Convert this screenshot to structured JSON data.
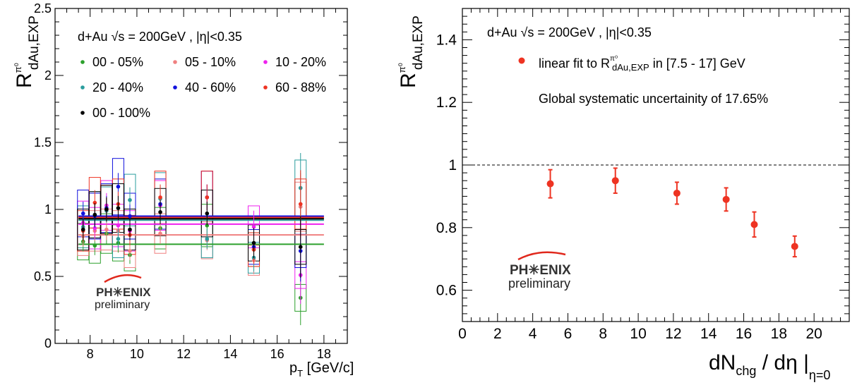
{
  "chart_data": [
    {
      "type": "scatter",
      "title": "",
      "ylabel": {
        "base": "R",
        "sup": "π⁰",
        "sub": "dAu,EXP"
      },
      "xlabel": {
        "base": "p",
        "sub": "T",
        "rest": " [GeV/c]"
      },
      "xlim": [
        6.5,
        19
      ],
      "ylim": [
        0,
        2.5
      ],
      "x_ticks": [
        "8",
        "10",
        "12",
        "14",
        "16",
        "18"
      ],
      "x_tick_values": [
        8,
        10,
        12,
        14,
        16,
        18
      ],
      "y_ticks": [
        "0",
        "0.5",
        "1",
        "1.5",
        "2",
        "2.5"
      ],
      "y_tick_values": [
        0,
        0.5,
        1,
        1.5,
        2,
        2.5
      ],
      "system_label": "d+Au  √s = 200GeV , |η|<0.35",
      "logo": {
        "text": "PH✳ENIX",
        "sub": "preliminary"
      },
      "series": [
        {
          "name": "00 - 05%",
          "color": "#2ca02c",
          "fit": 0.74,
          "x": [
            7.7,
            8.2,
            8.7,
            9.2,
            9.7,
            11.0,
            13.0,
            15.0,
            17.0
          ],
          "y": [
            0.76,
            0.73,
            0.82,
            0.75,
            0.66,
            0.86,
            0.88,
            0.7,
            0.34
          ]
        },
        {
          "name": "05 - 10%",
          "color": "#f08080",
          "fit": 0.81,
          "x": [
            7.7,
            8.2,
            8.7,
            9.2,
            9.7,
            11.0,
            13.0,
            15.0,
            17.0
          ],
          "y": [
            0.8,
            0.84,
            0.85,
            0.84,
            0.69,
            0.82,
            0.77,
            0.62,
            1.02
          ]
        },
        {
          "name": "10 - 20%",
          "color": "#ee22ee",
          "fit": 0.89,
          "x": [
            7.7,
            8.2,
            8.7,
            9.2,
            9.7,
            11.0,
            13.0,
            15.0,
            17.0
          ],
          "y": [
            0.9,
            0.86,
            1.03,
            0.88,
            0.84,
            1.03,
            1.09,
            0.87,
            0.51
          ]
        },
        {
          "name": "20 - 40%",
          "color": "#2a9d9d",
          "fit": 0.92,
          "x": [
            7.7,
            8.2,
            8.7,
            9.2,
            9.7,
            11.0,
            13.0,
            15.0,
            17.0
          ],
          "y": [
            0.87,
            0.96,
            0.99,
            0.78,
            1.07,
            1.08,
            0.78,
            0.64,
            1.16
          ]
        },
        {
          "name": "40 - 60%",
          "color": "#1111dd",
          "fit": 0.95,
          "x": [
            7.7,
            8.2,
            8.7,
            9.2,
            9.7,
            11.0,
            13.0,
            15.0,
            17.0
          ],
          "y": [
            0.97,
            0.95,
            1.01,
            1.17,
            0.95,
            1.04,
            1.09,
            0.72,
            0.69
          ]
        },
        {
          "name": "60 - 88%",
          "color": "#ee3322",
          "fit": 0.94,
          "x": [
            7.7,
            8.2,
            8.7,
            9.2,
            9.7,
            11.0,
            13.0,
            15.0,
            17.0
          ],
          "y": [
            0.84,
            1.05,
            1.0,
            1.04,
            0.81,
            1.09,
            1.09,
            0.7,
            1.04
          ]
        },
        {
          "name": "00 - 100%",
          "color": "#000000",
          "fit": 0.93,
          "x": [
            7.7,
            8.2,
            8.7,
            9.2,
            9.7,
            11.0,
            13.0,
            15.0,
            17.0
          ],
          "y": [
            0.85,
            0.96,
            1.0,
            1.01,
            0.85,
            0.98,
            0.97,
            0.75,
            0.72
          ]
        }
      ]
    },
    {
      "type": "scatter",
      "title": "",
      "ylabel": {
        "base": "R",
        "sup": "π⁰",
        "sub": "dAu,EXP"
      },
      "xlabel": {
        "base": "dN",
        "sub": "chg",
        "rest": " / dη |",
        "sub2": "η=0"
      },
      "xlim": [
        0,
        22
      ],
      "ylim": [
        0.5,
        1.5
      ],
      "x_ticks": [
        "0",
        "2",
        "4",
        "6",
        "8",
        "10",
        "12",
        "14",
        "16",
        "18",
        "20"
      ],
      "x_tick_values": [
        0,
        2,
        4,
        6,
        8,
        10,
        12,
        14,
        16,
        18,
        20
      ],
      "y_ticks": [
        "0.6",
        "0.8",
        "1",
        "1.2",
        "1.4"
      ],
      "y_tick_values": [
        0.6,
        0.8,
        1.0,
        1.2,
        1.4
      ],
      "reference_line": 1.0,
      "system_label": "d+Au  √s = 200GeV , |η|<0.35",
      "legend_text": {
        "pre": "linear fit to R",
        "sup": "π⁰",
        "sub": "dAu,EXP",
        "post": " in [7.5 - 17] GeV"
      },
      "note": "Global systematic uncertainity of 17.65%",
      "logo": {
        "text": "PH✳ENIX",
        "sub": "preliminary"
      },
      "series": [
        {
          "color": "#ee3322",
          "x": [
            5.0,
            8.7,
            12.2,
            15.0,
            16.6,
            18.9
          ],
          "y": [
            0.94,
            0.95,
            0.91,
            0.89,
            0.81,
            0.74
          ],
          "err": [
            0.045,
            0.04,
            0.035,
            0.037,
            0.04,
            0.033
          ]
        }
      ]
    }
  ]
}
